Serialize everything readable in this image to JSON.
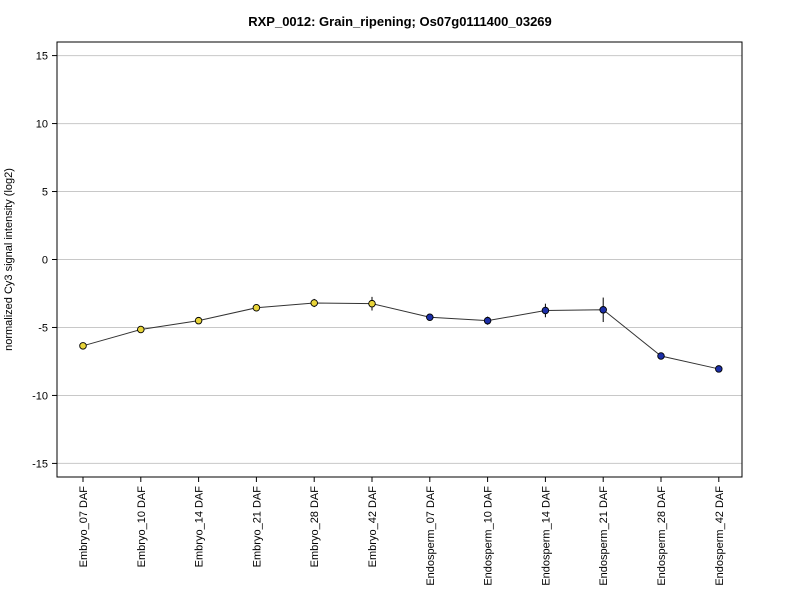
{
  "chart_data": {
    "type": "line",
    "title": "RXP_0012: Grain_ripening; Os07g0111400_03269",
    "xlabel": "",
    "ylabel": "normalized Cy3 signal intensity (log2)",
    "ylim": [
      -16,
      16
    ],
    "yticks": [
      15,
      10,
      5,
      0,
      -5,
      -10,
      -15
    ],
    "ytick_labels": [
      "15",
      "10",
      "5",
      "0",
      "-5",
      "-10",
      "-15"
    ],
    "grid": true,
    "categories": [
      "Embryo_07 DAF",
      "Embryo_10 DAF",
      "Embryo_14 DAF",
      "Embryo_21 DAF",
      "Embryo_28 DAF",
      "Embryo_42 DAF",
      "Endosperm_07 DAF",
      "Endosperm_10 DAF",
      "Endosperm_14 DAF",
      "Endosperm_21 DAF",
      "Endosperm_28 DAF",
      "Endosperm_42 DAF"
    ],
    "values": [
      -6.35,
      -5.15,
      -4.5,
      -3.55,
      -3.2,
      -3.25,
      -4.25,
      -4.5,
      -3.75,
      -3.7,
      -7.1,
      -8.05
    ],
    "error": [
      0.15,
      0.2,
      0.15,
      0.1,
      0.3,
      0.5,
      0.1,
      0.3,
      0.5,
      0.9,
      0.25,
      0.1
    ],
    "point_colors": [
      "#e8d43a",
      "#e8d43a",
      "#e8d43a",
      "#e8d43a",
      "#e8d43a",
      "#e8d43a",
      "#1c2fa8",
      "#1c2fa8",
      "#1c2fa8",
      "#1c2fa8",
      "#1c2fa8",
      "#1c2fa8"
    ],
    "line_color": "#333333",
    "grid_color": "#c8c8c8"
  }
}
